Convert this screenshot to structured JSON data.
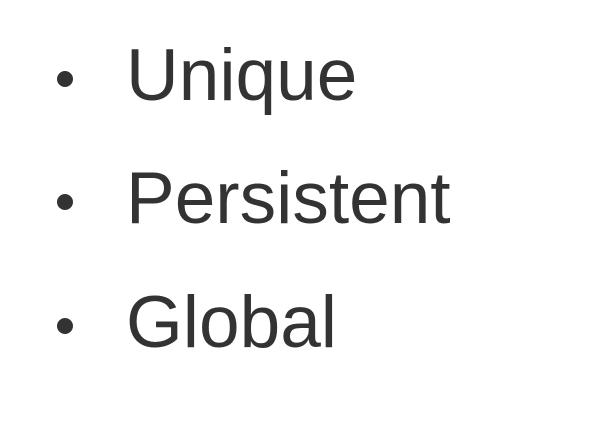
{
  "list": {
    "items": [
      {
        "text": "Unique"
      },
      {
        "text": "Persistent"
      },
      {
        "text": "Global"
      }
    ]
  },
  "colors": {
    "background": "#ffffff",
    "text": "#333333"
  },
  "icons": {
    "bullet": "bullet-dot-icon"
  }
}
